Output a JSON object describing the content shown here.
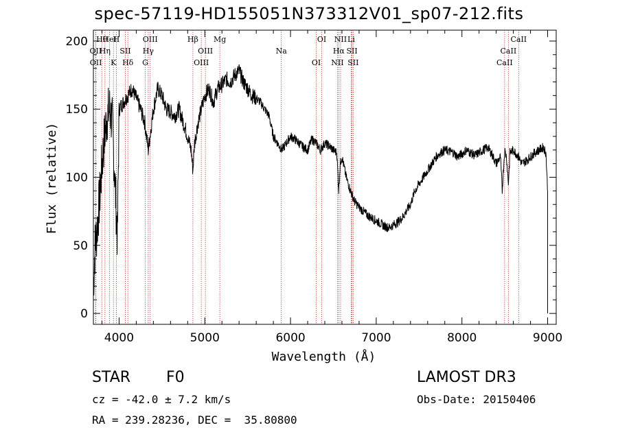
{
  "title": "spec-57119-HD155051N373312V01_sp07-212.fits",
  "chart_data": {
    "type": "line",
    "xlabel": "Wavelength (Å)",
    "ylabel": "Flux (relative)",
    "xlim": [
      3700,
      9100
    ],
    "ylim": [
      -8,
      208
    ],
    "x_ticks": [
      4000,
      5000,
      6000,
      7000,
      8000,
      9000
    ],
    "y_ticks": [
      0,
      50,
      100,
      150,
      200
    ],
    "grid": false,
    "series": [
      {
        "name": "spectrum",
        "x": [
          3700,
          3720,
          3740,
          3760,
          3780,
          3800,
          3830,
          3860,
          3890,
          3920,
          3950,
          3980,
          4000,
          4050,
          4100,
          4150,
          4200,
          4250,
          4300,
          4340,
          4400,
          4450,
          4500,
          4550,
          4600,
          4650,
          4700,
          4750,
          4800,
          4840,
          4861,
          4880,
          4920,
          4960,
          5000,
          5050,
          5100,
          5150,
          5200,
          5250,
          5300,
          5350,
          5400,
          5450,
          5500,
          5550,
          5600,
          5650,
          5700,
          5750,
          5800,
          5850,
          5900,
          5950,
          6000,
          6050,
          6100,
          6150,
          6200,
          6250,
          6300,
          6350,
          6400,
          6450,
          6500,
          6540,
          6563,
          6580,
          6600,
          6650,
          6700,
          6750,
          6800,
          6850,
          6900,
          6950,
          7000,
          7050,
          7100,
          7150,
          7200,
          7250,
          7300,
          7350,
          7400,
          7450,
          7500,
          7550,
          7600,
          7650,
          7700,
          7750,
          7800,
          7850,
          7900,
          7950,
          8000,
          8050,
          8100,
          8150,
          8200,
          8250,
          8300,
          8350,
          8400,
          8450,
          8470,
          8498,
          8520,
          8542,
          8560,
          8600,
          8662,
          8700,
          8750,
          8800,
          8850,
          8900,
          8950,
          8980,
          9000
        ],
        "y": [
          20,
          50,
          60,
          75,
          90,
          110,
          130,
          145,
          150,
          140,
          100,
          55,
          150,
          155,
          160,
          165,
          158,
          150,
          140,
          120,
          150,
          165,
          160,
          150,
          148,
          145,
          150,
          140,
          130,
          120,
          105,
          125,
          140,
          150,
          160,
          165,
          155,
          165,
          168,
          172,
          170,
          175,
          178,
          170,
          165,
          160,
          158,
          155,
          150,
          145,
          130,
          125,
          120,
          125,
          130,
          128,
          125,
          122,
          120,
          128,
          125,
          120,
          125,
          123,
          120,
          118,
          90,
          110,
          115,
          100,
          90,
          82,
          78,
          75,
          72,
          70,
          68,
          66,
          64,
          63,
          65,
          67,
          70,
          75,
          80,
          90,
          95,
          100,
          105,
          110,
          115,
          118,
          120,
          119,
          118,
          115,
          117,
          120,
          118,
          116,
          118,
          120,
          122,
          117,
          110,
          115,
          90,
          120,
          115,
          95,
          118,
          120,
          115,
          110,
          112,
          115,
          118,
          120,
          122,
          118,
          90
        ]
      }
    ],
    "lines": [
      {
        "name": "Hθ",
        "wavelength": 3798
      },
      {
        "name": "OII",
        "wavelength": 3727
      },
      {
        "name": "OII",
        "wavelength": 3729
      },
      {
        "name": "HeI",
        "wavelength": 3889
      },
      {
        "name": "Hη",
        "wavelength": 3835
      },
      {
        "name": "K",
        "wavelength": 3934
      },
      {
        "name": "H",
        "wavelength": 3968
      },
      {
        "name": "SII",
        "wavelength": 4072
      },
      {
        "name": "Hδ",
        "wavelength": 4102
      },
      {
        "name": "OIII",
        "wavelength": 4363
      },
      {
        "name": "Hγ",
        "wavelength": 4340
      },
      {
        "name": "G",
        "wavelength": 4305
      },
      {
        "name": "Hβ",
        "wavelength": 4861
      },
      {
        "name": "OIII",
        "wavelength": 5007
      },
      {
        "name": "OIII",
        "wavelength": 4959
      },
      {
        "name": "Mg",
        "wavelength": 5175
      },
      {
        "name": "Na",
        "wavelength": 5893
      },
      {
        "name": "OI",
        "wavelength": 6300
      },
      {
        "name": "OI",
        "wavelength": 6364
      },
      {
        "name": "Hα",
        "wavelength": 6563
      },
      {
        "name": "NII",
        "wavelength": 6548
      },
      {
        "name": "NII",
        "wavelength": 6584
      },
      {
        "name": "SII",
        "wavelength": 6717
      },
      {
        "name": "SII",
        "wavelength": 6731
      },
      {
        "name": "Li",
        "wavelength": 6708
      },
      {
        "name": "CaII",
        "wavelength": 8542
      },
      {
        "name": "CaII",
        "wavelength": 8498
      },
      {
        "name": "CaII",
        "wavelength": 8662
      }
    ]
  },
  "info": {
    "class": "STAR",
    "subclass": "F0",
    "survey": "LAMOST DR3",
    "cz": "cz = -42.0 ± 7.2 km/s",
    "obs_date": "Obs-Date: 20150406",
    "coords": "RA = 239.28236, DEC =  35.80800"
  }
}
